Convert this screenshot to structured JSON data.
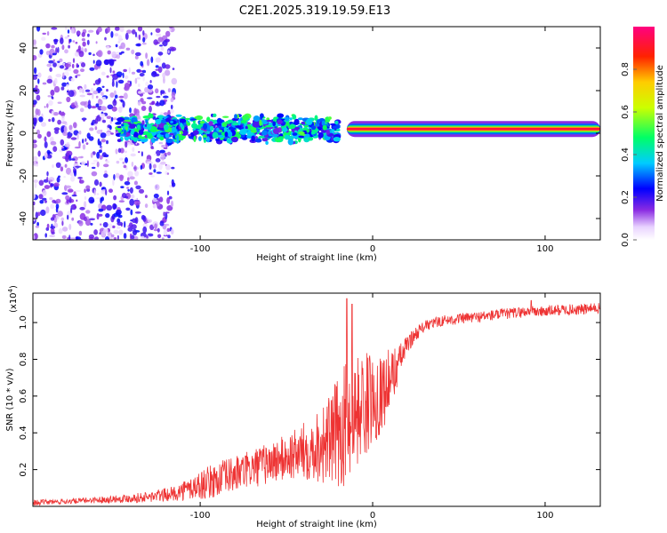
{
  "chart_data": [
    {
      "type": "heatmap",
      "title": "C2E1.2025.319.19.59.E13",
      "xlabel": "Height of straight line (km)",
      "ylabel": "Frequency (Hz)",
      "xlim": [
        -197,
        132
      ],
      "ylim": [
        -50,
        50
      ],
      "xticks": [
        -100,
        0,
        100
      ],
      "xtick_labels": [
        "-100",
        "0",
        "100"
      ],
      "yticks": [
        -40,
        -20,
        0,
        20,
        40
      ],
      "ytick_labels": [
        "-40",
        "-20",
        "0",
        "20",
        "40"
      ],
      "colorbar": {
        "label": "Normalized spectral amplitude",
        "range": [
          0,
          1
        ],
        "ticks": [
          0.0,
          0.2,
          0.4,
          0.6,
          0.8
        ],
        "tick_labels": [
          "0.0",
          "0.2",
          "0.4",
          "0.6",
          "0.8"
        ]
      },
      "features": [
        {
          "name": "diffuse scatter",
          "x_range": [
            -197,
            -115
          ],
          "freq_range": [
            -50,
            50
          ],
          "amplitude": 0.15
        },
        {
          "name": "speckled band",
          "x_range": [
            -148,
            -20
          ],
          "freq_range": [
            -6,
            10
          ],
          "amplitude": 0.5
        },
        {
          "name": "narrow line",
          "x_range": [
            -15,
            132
          ],
          "freq_center": 2,
          "freq_halfwidth": 1.5,
          "amplitude": 0.95
        }
      ]
    },
    {
      "type": "line",
      "title": "",
      "xlabel": "Height of straight line (km)",
      "ylabel": "SNR (10 * v/v)",
      "y_multiplier": "(x10",
      "y_multiplier_exp": "4",
      "y_multiplier_close": ")",
      "xlim": [
        -197,
        132
      ],
      "ylim": [
        0,
        1.16
      ],
      "xticks": [
        -100,
        0,
        100
      ],
      "xtick_labels": [
        "-100",
        "0",
        "100"
      ],
      "yticks": [
        0.2,
        0.4,
        0.6,
        0.8,
        1.0
      ],
      "ytick_labels": [
        "0.2",
        "0.4",
        "0.6",
        "0.8",
        "1.0"
      ],
      "series": [
        {
          "name": "SNR",
          "color": "#ee3333",
          "x": [
            -197,
            -170,
            -150,
            -130,
            -115,
            -105,
            -95,
            -85,
            -75,
            -65,
            -55,
            -45,
            -35,
            -25,
            -20,
            -15,
            -12,
            -8,
            -5,
            0,
            5,
            10,
            15,
            20,
            25,
            30,
            40,
            50,
            60,
            70,
            80,
            90,
            100,
            110,
            120,
            132
          ],
          "values": [
            0.02,
            0.03,
            0.04,
            0.05,
            0.07,
            0.1,
            0.13,
            0.16,
            0.19,
            0.22,
            0.25,
            0.28,
            0.32,
            0.36,
            0.4,
            0.46,
            0.5,
            0.53,
            0.55,
            0.58,
            0.62,
            0.68,
            0.78,
            0.88,
            0.94,
            0.98,
            1.01,
            1.02,
            1.03,
            1.04,
            1.05,
            1.06,
            1.06,
            1.07,
            1.07,
            1.08
          ],
          "noise_amplitude": [
            0.015,
            0.015,
            0.02,
            0.03,
            0.04,
            0.07,
            0.09,
            0.1,
            0.1,
            0.11,
            0.12,
            0.14,
            0.18,
            0.25,
            0.3,
            0.35,
            0.3,
            0.3,
            0.3,
            0.25,
            0.22,
            0.18,
            0.1,
            0.05,
            0.04,
            0.03,
            0.03,
            0.03,
            0.03,
            0.03,
            0.03,
            0.03,
            0.03,
            0.03,
            0.03,
            0.03
          ],
          "peaks": [
            {
              "x": -15,
              "value": 1.13
            },
            {
              "x": -12,
              "value": 1.1
            },
            {
              "x": 92,
              "value": 1.12
            }
          ]
        }
      ]
    }
  ]
}
